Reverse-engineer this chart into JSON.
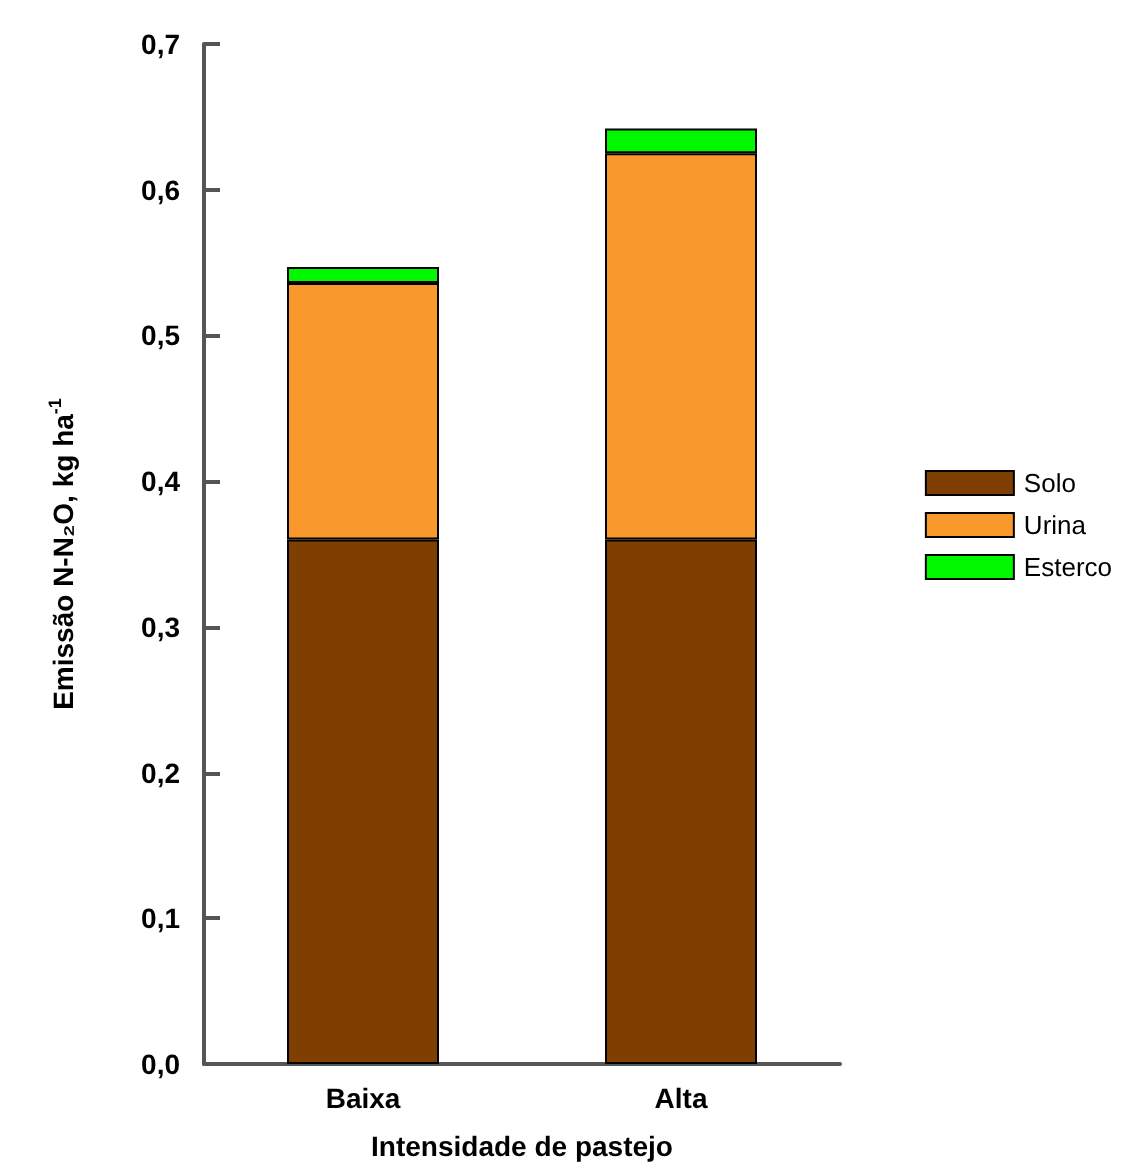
{
  "chart_data": {
    "type": "bar",
    "stacked": true,
    "xlabel": "Intensidade de pastejo",
    "ylabel": "Emissão N-N₂O, kg ha$^{-1}$",
    "categories": [
      "Baixa",
      "Alta"
    ],
    "series": [
      {
        "name": "Solo",
        "color": "#7f3f00",
        "values": [
          0.36,
          0.36
        ]
      },
      {
        "name": "Urina",
        "color": "#f9982b",
        "values": [
          0.176,
          0.265
        ]
      },
      {
        "name": "Esterco",
        "color": "#00f800",
        "values": [
          0.011,
          0.017
        ]
      }
    ],
    "ylim": [
      0,
      0.7
    ],
    "yticks": [
      {
        "value": 0,
        "label": "0,0"
      },
      {
        "value": 0.1,
        "label": "0,1"
      },
      {
        "value": 0.2,
        "label": "0,2"
      },
      {
        "value": 0.3,
        "label": "0,3"
      },
      {
        "value": 0.4,
        "label": "0,4"
      },
      {
        "value": 0.5,
        "label": "0,5"
      },
      {
        "value": 0.6,
        "label": "0,6"
      },
      {
        "value": 0.7,
        "label": "0,7"
      }
    ],
    "grid": false,
    "legend": "right"
  }
}
